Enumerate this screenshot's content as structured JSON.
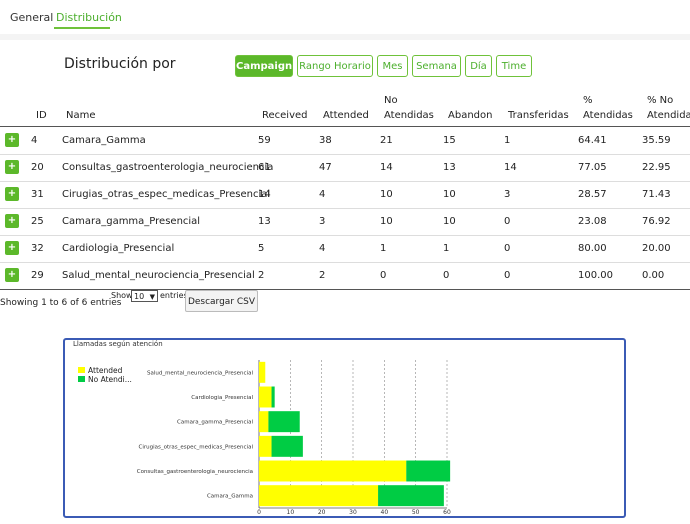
{
  "tabs": [
    {
      "label": "General",
      "active": false
    },
    {
      "label": "Distribución",
      "active": true
    }
  ],
  "distribution": {
    "title": "Distribución por",
    "buttons": [
      {
        "label": "Campaign",
        "active": true
      },
      {
        "label": "Rango Horario",
        "active": false
      },
      {
        "label": "Mes",
        "active": false
      },
      {
        "label": "Semana",
        "active": false
      },
      {
        "label": "Día",
        "active": false
      },
      {
        "label": "Time",
        "active": false
      }
    ]
  },
  "table": {
    "headers": {
      "id": "ID",
      "name": "Name",
      "received": "Received",
      "attended": "Attended",
      "no_atendidas_1": "No",
      "no_atendidas_2": "Atendidas",
      "abandon": "Abandon",
      "transferidas": "Transferidas",
      "pct_atendidas_1": "%",
      "pct_atendidas_2": "Atendidas",
      "pct_no_atendidas_1": "% No",
      "pct_no_atendidas_2": "Atendidas"
    },
    "expand_symbol": "+",
    "rows": [
      {
        "id": "4",
        "name": "Camara_Gamma",
        "received": "59",
        "attended": "38",
        "no_atendidas": "21",
        "abandon": "15",
        "transferidas": "1",
        "pct_atendidas": "64.41",
        "pct_no_atendidas": "35.59"
      },
      {
        "id": "20",
        "name": "Consultas_gastroenterologia_neurociencia",
        "received": "61",
        "attended": "47",
        "no_atendidas": "14",
        "abandon": "13",
        "transferidas": "14",
        "pct_atendidas": "77.05",
        "pct_no_atendidas": "22.95"
      },
      {
        "id": "31",
        "name": "Cirugias_otras_espec_medicas_Presencial",
        "received": "14",
        "attended": "4",
        "no_atendidas": "10",
        "abandon": "10",
        "transferidas": "3",
        "pct_atendidas": "28.57",
        "pct_no_atendidas": "71.43"
      },
      {
        "id": "25",
        "name": "Camara_gamma_Presencial",
        "received": "13",
        "attended": "3",
        "no_atendidas": "10",
        "abandon": "10",
        "transferidas": "0",
        "pct_atendidas": "23.08",
        "pct_no_atendidas": "76.92"
      },
      {
        "id": "32",
        "name": "Cardiologia_Presencial",
        "received": "5",
        "attended": "4",
        "no_atendidas": "1",
        "abandon": "1",
        "transferidas": "0",
        "pct_atendidas": "80.00",
        "pct_no_atendidas": "20.00"
      },
      {
        "id": "29",
        "name": "Salud_mental_neurociencia_Presencial",
        "received": "2",
        "attended": "2",
        "no_atendidas": "0",
        "abandon": "0",
        "transferidas": "0",
        "pct_atendidas": "100.00",
        "pct_no_atendidas": "0.00"
      }
    ],
    "info": "Showing 1 to 6 of 6 entries",
    "show_label": "Show",
    "page_size": "10",
    "entries_label": "entries",
    "csv_label": "Descargar CSV"
  },
  "colors": {
    "accent": "#5cb82a",
    "attended": "#ffff00",
    "no_atendidas": "#00cc44",
    "chart_border": "#3b5bb5"
  },
  "chart_data": {
    "type": "bar",
    "orientation": "horizontal",
    "stacked": true,
    "title": "Llamadas según atención",
    "categories": [
      "Salud_mental_neurociencia_Presencial",
      "Cardiologia_Presencial",
      "Camara_gamma_Presencial",
      "Cirugias_otras_espec_medicas_Presencial",
      "Consultas_gastroenterologia_neurociencia",
      "Camara_Gamma"
    ],
    "series": [
      {
        "name": "Attended",
        "values": [
          2,
          4,
          3,
          4,
          47,
          38
        ]
      },
      {
        "name": "No Atendi...",
        "values": [
          0,
          1,
          10,
          10,
          14,
          21
        ]
      }
    ],
    "xlim": [
      0,
      60
    ],
    "xticks": [
      "0",
      "10",
      "20",
      "30",
      "40",
      "50",
      "60"
    ],
    "grid": true,
    "legend": "top-left"
  }
}
